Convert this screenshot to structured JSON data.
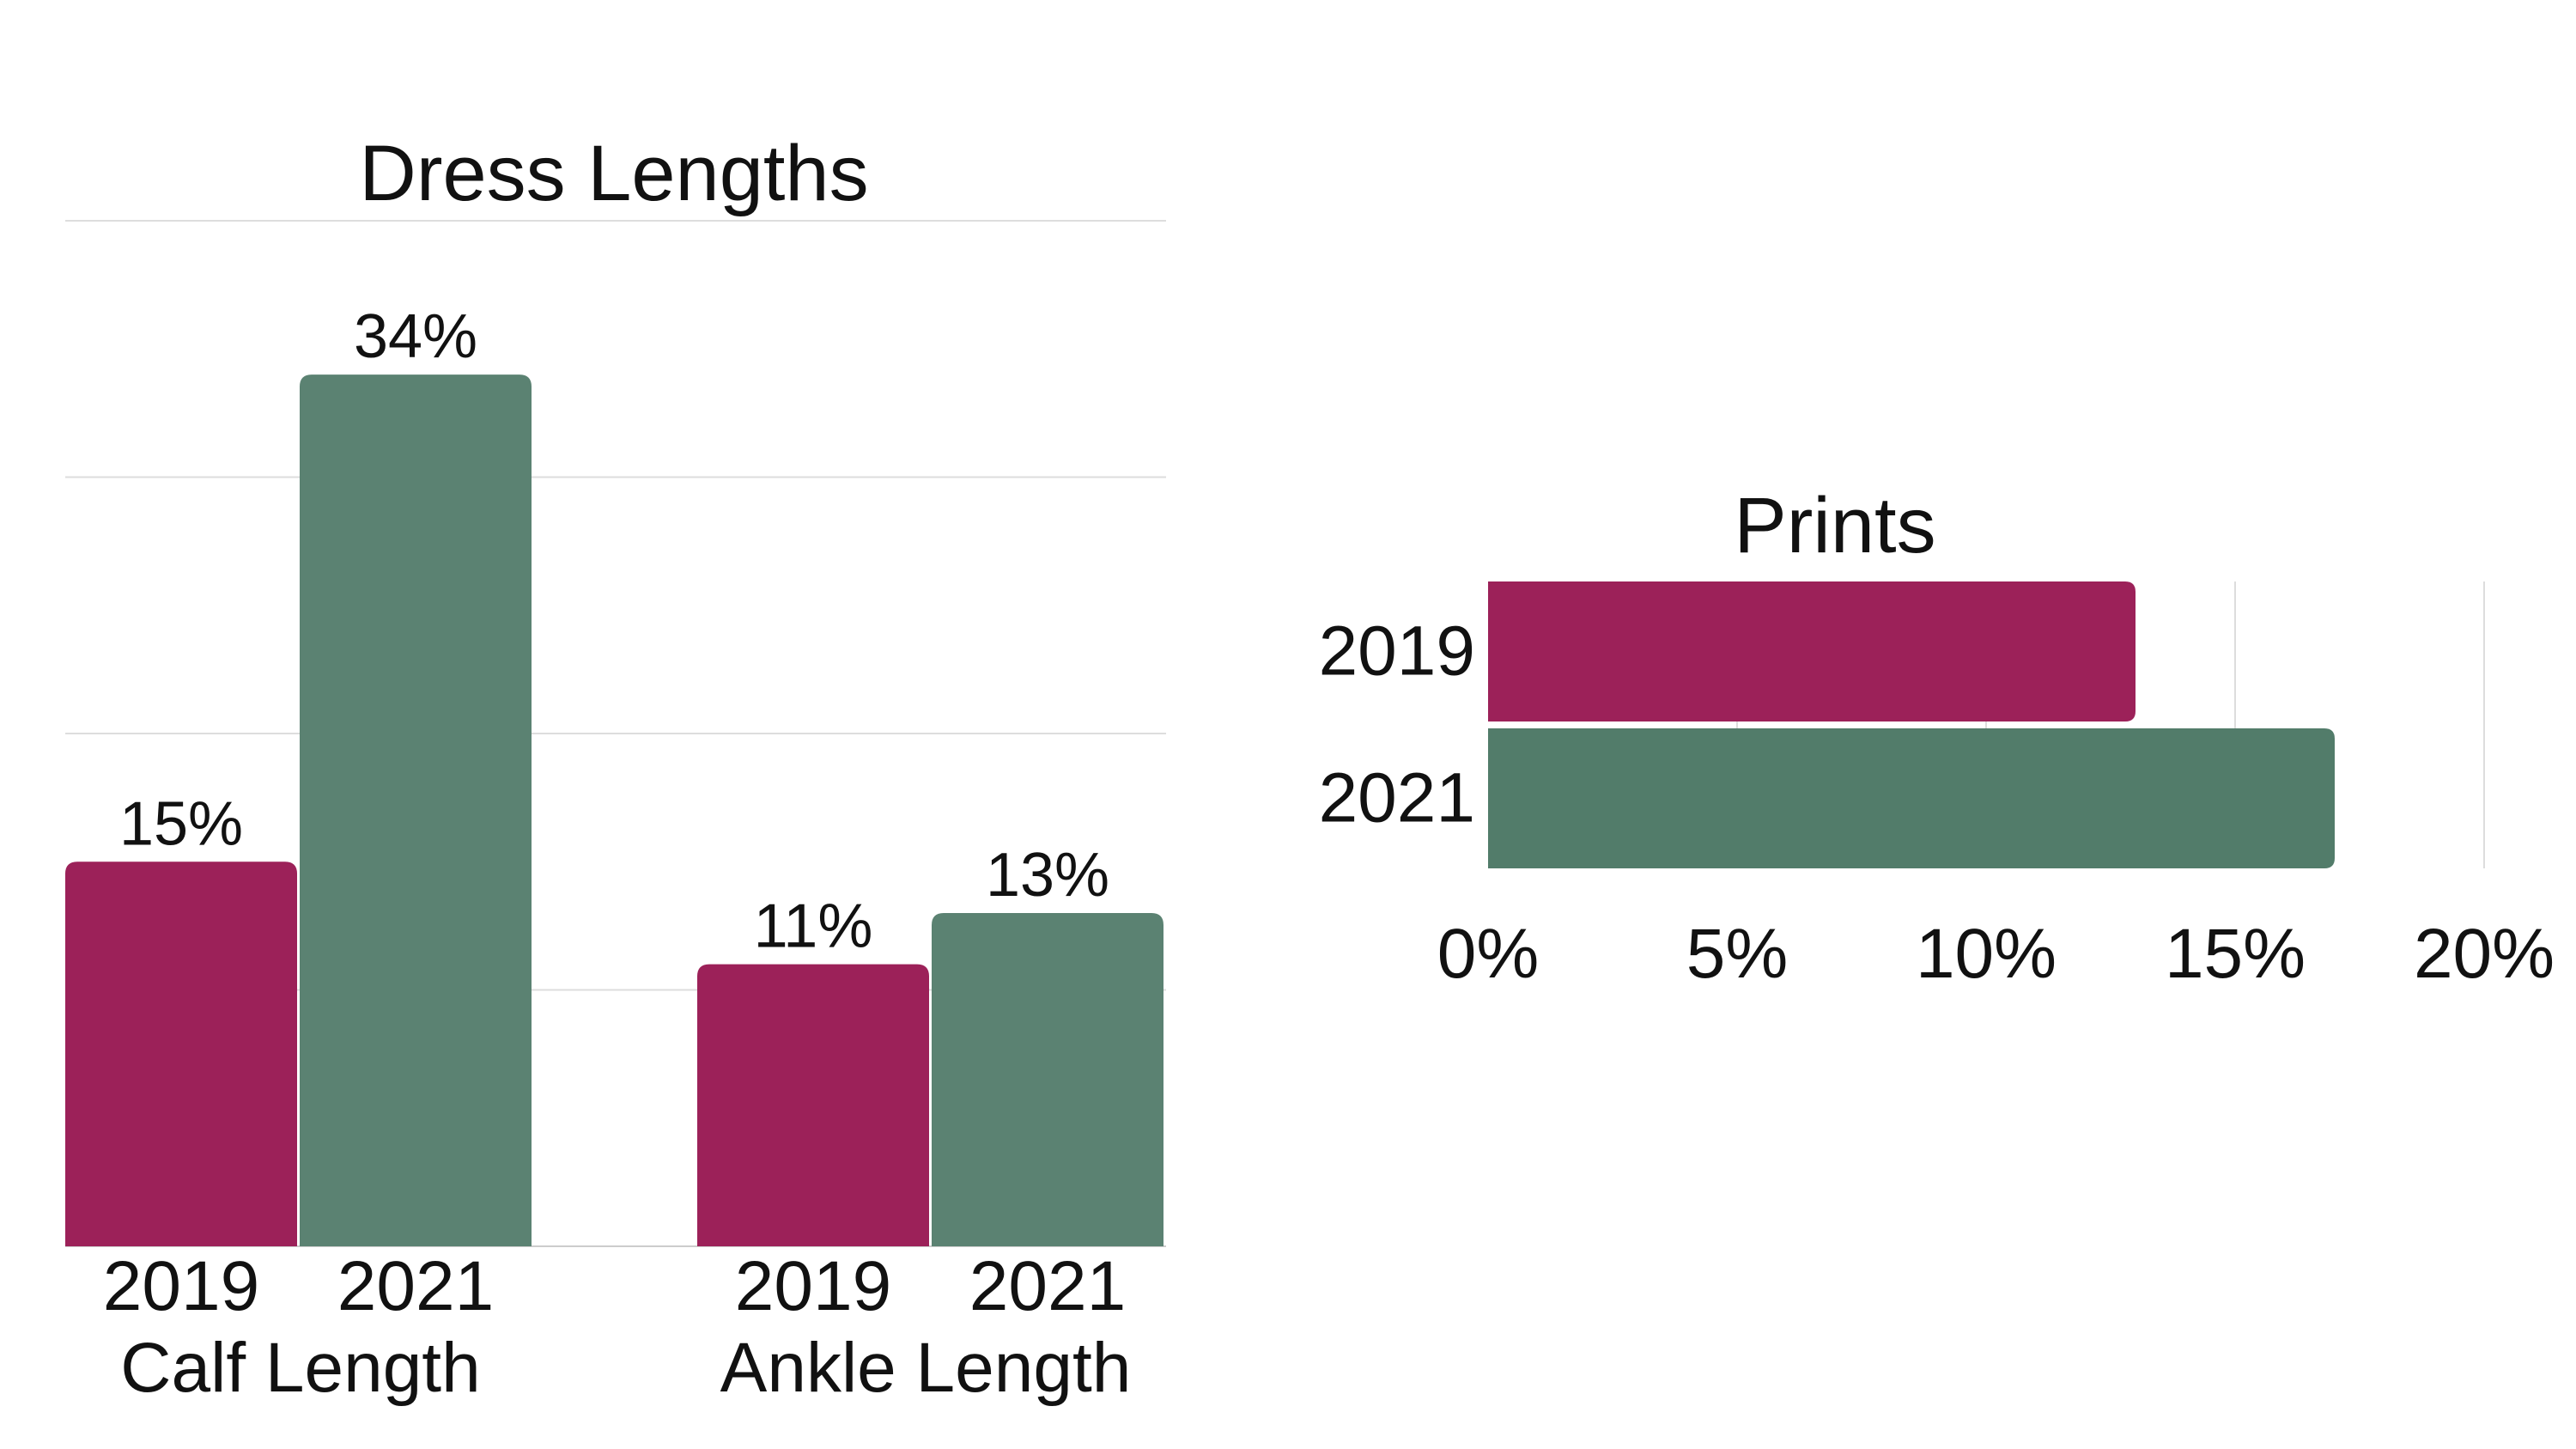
{
  "colors": {
    "y2019": "#9c2159",
    "y2021": "#5b8272",
    "y2021_prints": "#527c6a",
    "grid": "#dddddd",
    "axis": "#cccccc"
  },
  "chart_data": [
    {
      "type": "bar",
      "title": "Dress Lengths",
      "groups": [
        "Calf Length",
        "Ankle Length"
      ],
      "categories": [
        "2019",
        "2021"
      ],
      "series": [
        {
          "values": [
            15,
            11
          ],
          "labels": [
            "15%",
            "11%"
          ]
        },
        {
          "values": [
            34,
            13
          ],
          "labels": [
            "34%",
            "13%"
          ]
        }
      ],
      "ylim": [
        0,
        40
      ],
      "grid": true,
      "unit": "%"
    },
    {
      "type": "bar",
      "orientation": "horizontal",
      "title": "Prints",
      "categories": [
        "2019",
        "2021"
      ],
      "values": [
        13,
        17
      ],
      "xlim": [
        0,
        20
      ],
      "xticks": [
        "0%",
        "5%",
        "10%",
        "15%",
        "20%"
      ],
      "grid": true,
      "unit": "%"
    }
  ]
}
